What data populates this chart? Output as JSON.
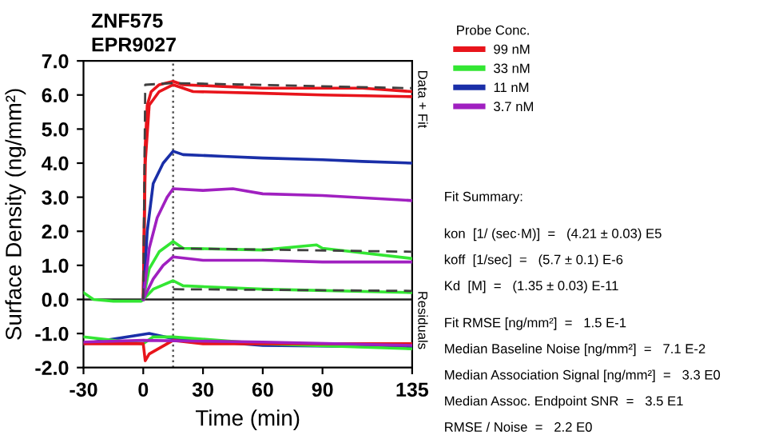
{
  "chart_data": {
    "type": "line",
    "title": "ZNF575",
    "subtitle": "EPR9027",
    "xlabel": "Time (min)",
    "ylabel": "Surface Density (ng/mm²)",
    "legend_title": "Probe Conc.",
    "legend": "right",
    "grid": false,
    "marker": "none",
    "line_style": "solid",
    "xlim": [
      -30,
      135
    ],
    "xticks": [
      -30,
      0,
      30,
      60,
      90,
      135
    ],
    "ylim": [
      -2,
      7
    ],
    "yticks": [
      {
        "value": -2,
        "label": "-2.0"
      },
      {
        "value": -1,
        "label": "-1.0"
      },
      {
        "value": 0,
        "label": "0.0"
      },
      {
        "value": 1,
        "label": "1.0"
      },
      {
        "value": 2,
        "label": "2.0"
      },
      {
        "value": 3,
        "label": "3.0"
      },
      {
        "value": 4,
        "label": "4.0"
      },
      {
        "value": 5,
        "label": "5.0"
      },
      {
        "value": 6,
        "label": "6.0"
      },
      {
        "value": 7,
        "label": "7.0"
      }
    ],
    "ref_lines": [
      {
        "axis": "x",
        "value": 15,
        "label": null,
        "color": "#555555",
        "line_style": "dotted"
      },
      {
        "axis": "y",
        "value": 0,
        "label": null,
        "color": "#222222",
        "line_style": "solid"
      }
    ],
    "series": [
      {
        "name": "99 nM",
        "color": "#e8141b",
        "x": [
          0,
          1,
          2,
          4,
          8,
          15,
          20,
          40,
          60,
          90,
          110,
          135
        ],
        "values": [
          0,
          4.5,
          5.7,
          6.1,
          6.3,
          6.4,
          6.3,
          6.25,
          6.2,
          6.2,
          6.2,
          6.1
        ]
      },
      {
        "color": "#e8141b",
        "x": [
          0,
          1,
          3,
          8,
          15,
          25,
          60,
          90,
          135
        ],
        "values": [
          0,
          4.0,
          5.7,
          6.1,
          6.3,
          6.1,
          6.05,
          6.0,
          5.95
        ]
      },
      {
        "name": "33 nM",
        "color": "#33e633",
        "x": [
          -30,
          -25,
          -15,
          -1,
          0,
          3,
          8,
          15,
          20,
          60,
          87,
          90,
          135
        ],
        "values": [
          0.2,
          0.0,
          -0.05,
          -0.05,
          0,
          0.9,
          1.4,
          1.7,
          1.5,
          1.45,
          1.6,
          1.5,
          1.2
        ]
      },
      {
        "color": "#33e633",
        "x": [
          0,
          5,
          15,
          20,
          60,
          135
        ],
        "values": [
          0,
          0.3,
          0.55,
          0.4,
          0.3,
          0.2
        ]
      },
      {
        "name": "11 nM",
        "color": "#1a2fa8",
        "x": [
          0,
          2,
          5,
          10,
          15,
          20,
          40,
          60,
          90,
          110,
          135
        ],
        "values": [
          0,
          2.0,
          3.4,
          4.0,
          4.35,
          4.25,
          4.2,
          4.15,
          4.1,
          4.05,
          4.0
        ]
      },
      {
        "name": "3.7 nM",
        "color": "#a020c0",
        "x": [
          0,
          3,
          7,
          12,
          15,
          30,
          45,
          60,
          90,
          135
        ],
        "values": [
          0,
          1.5,
          2.4,
          3.0,
          3.25,
          3.2,
          3.25,
          3.1,
          3.05,
          2.9
        ]
      },
      {
        "color": "#a020c0",
        "x": [
          0,
          5,
          10,
          15,
          30,
          60,
          90,
          135
        ],
        "values": [
          0,
          0.6,
          1.0,
          1.25,
          1.15,
          1.15,
          1.1,
          1.1
        ]
      },
      {
        "color": "#404040",
        "line_style": "dashed",
        "x": [
          0,
          1,
          15,
          135
        ],
        "values": [
          0,
          6.3,
          6.35,
          6.2
        ]
      },
      {
        "color": "#404040",
        "line_style": "dashed",
        "x": [
          15,
          135
        ],
        "values": [
          1.5,
          1.4
        ]
      },
      {
        "color": "#404040",
        "line_style": "dashed",
        "x": [
          15,
          135
        ],
        "values": [
          0.3,
          0.25
        ]
      },
      {
        "color": "#1a2fa8",
        "x": [
          -30,
          3,
          15,
          60,
          135
        ],
        "values": [
          -1.3,
          -1.0,
          -1.15,
          -1.35,
          -1.4
        ]
      },
      {
        "color": "#33e633",
        "x": [
          -30,
          0,
          5,
          15,
          60,
          135
        ],
        "values": [
          -1.1,
          -1.3,
          -1.1,
          -1.1,
          -1.3,
          -1.45
        ]
      },
      {
        "color": "#e8141b",
        "x": [
          -30,
          0,
          1,
          3,
          15,
          30,
          90,
          135
        ],
        "values": [
          -1.3,
          -1.3,
          -1.8,
          -1.6,
          -1.2,
          -1.3,
          -1.3,
          -1.3
        ]
      },
      {
        "color": "#a020c0",
        "x": [
          -30,
          0,
          60,
          135
        ],
        "values": [
          -1.25,
          -1.2,
          -1.25,
          -1.35
        ]
      }
    ],
    "annotations": [
      "Data + Fit",
      "Residuals",
      "Fit Summary:",
      "kon  [1/ (sec·M)]  =   (4.21 ± 0.03) E5",
      "koff  [1/sec]  =   (5.7 ± 0.1) E-6",
      "Kd  [M]  =   (1.35 ± 0.03) E-11",
      "Fit RMSE [ng/mm²]  =   1.5 E-1",
      "Median Baseline Noise [ng/mm²]  =   7.1 E-2",
      "Median Association Signal [ng/mm²]  =   3.3 E0",
      "Median Assoc. Endpoint SNR  =   3.5 E1",
      "RMSE / Noise  =   2.2 E0"
    ]
  }
}
